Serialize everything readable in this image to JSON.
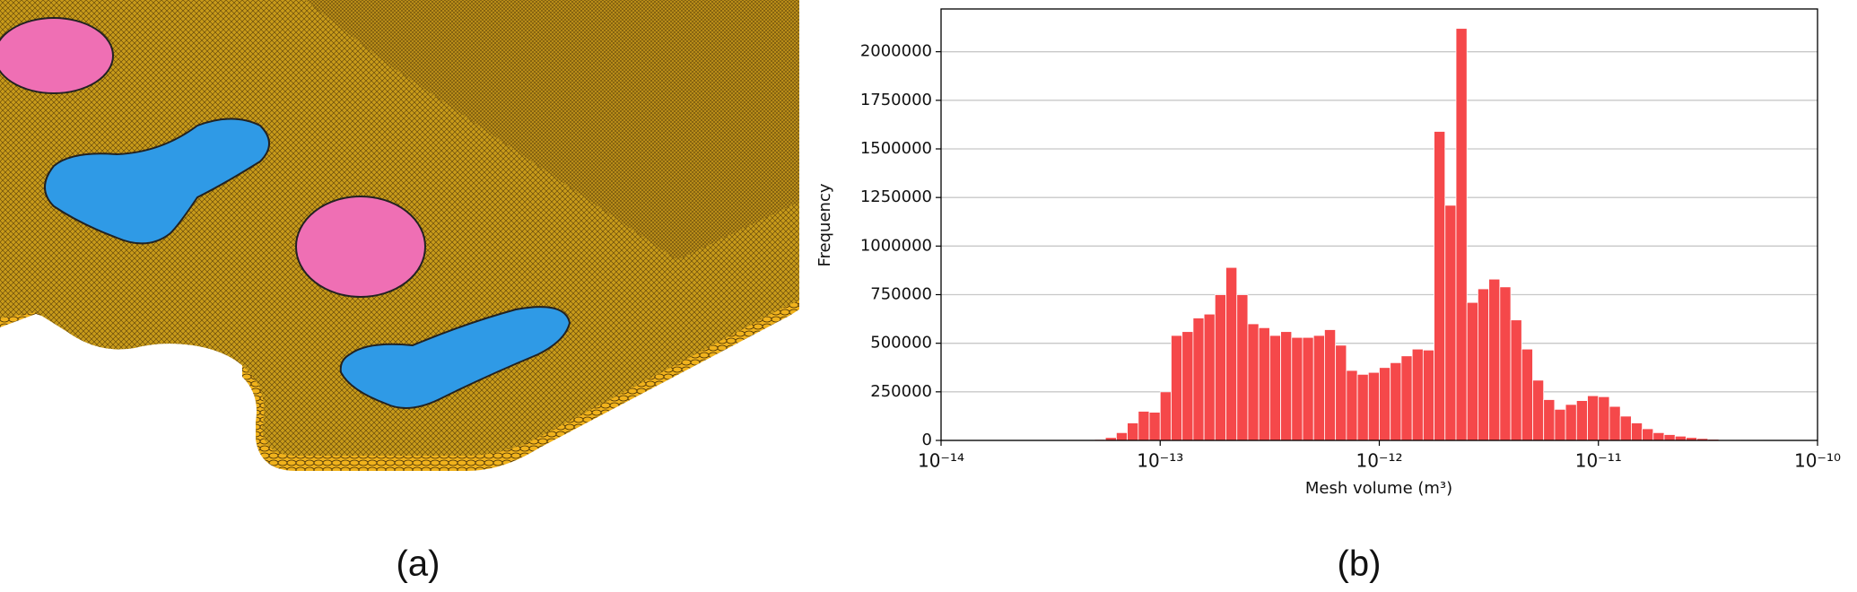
{
  "chart_data": {
    "type": "histogram",
    "xlabel": "Mesh volume (m³)",
    "ylabel": "Frequency",
    "color": "#f5484a",
    "xscale": "log",
    "grid": true,
    "bins": [
      1e-14,
      1.122e-14,
      1.259e-14,
      1.413e-14,
      1.585e-14,
      1.778e-14,
      1.995e-14,
      2.239e-14,
      2.512e-14,
      2.818e-14,
      3.162e-14,
      3.548e-14,
      3.981e-14,
      4.467e-14,
      5.012e-14,
      5.623e-14,
      6.31e-14,
      7.079e-14,
      7.943e-14,
      8.913e-14,
      1e-13,
      1.122e-13,
      1.259e-13,
      1.413e-13,
      1.585e-13,
      1.778e-13,
      1.995e-13,
      2.239e-13,
      2.512e-13,
      2.818e-13,
      3.162e-13,
      3.548e-13,
      3.981e-13,
      4.467e-13,
      5.012e-13,
      5.623e-13,
      6.31e-13,
      7.079e-13,
      7.943e-13,
      8.913e-13,
      1e-12,
      1.122e-12,
      1.259e-12,
      1.413e-12,
      1.585e-12,
      1.778e-12,
      1.995e-12,
      2.239e-12,
      2.512e-12,
      2.818e-12,
      3.162e-12,
      3.548e-12,
      3.981e-12,
      4.467e-12,
      5.012e-12,
      5.623e-12,
      6.31e-12,
      7.079e-12,
      7.943e-12,
      8.913e-12,
      1e-11,
      1.122e-11,
      1.259e-11,
      1.413e-11,
      1.585e-11,
      1.778e-11,
      1.995e-11,
      2.239e-11,
      2.512e-11,
      2.818e-11,
      3.162e-11,
      3.548e-11,
      3.981e-11,
      4.467e-11,
      5.012e-11,
      5.623e-11,
      6.31e-11,
      7.079e-11,
      7.943e-11,
      8.913e-11,
      1e-10
    ],
    "values": [
      0,
      0,
      0,
      0,
      0,
      0,
      0,
      0,
      0,
      0,
      0,
      0,
      0,
      0,
      5000,
      15000,
      40000,
      90000,
      150000,
      145000,
      250000,
      540000,
      560000,
      630000,
      650000,
      750000,
      890000,
      750000,
      600000,
      580000,
      540000,
      560000,
      530000,
      530000,
      540000,
      570000,
      490000,
      360000,
      340000,
      350000,
      375000,
      400000,
      435000,
      470000,
      465000,
      1590000,
      1210000,
      2120000,
      710000,
      780000,
      830000,
      790000,
      620000,
      470000,
      310000,
      210000,
      160000,
      185000,
      205000,
      230000,
      225000,
      175000,
      125000,
      90000,
      60000,
      40000,
      30000,
      22000,
      15000,
      10000,
      6000,
      4000,
      2500,
      1500,
      1000,
      600,
      400,
      200,
      100,
      0
    ],
    "xlim": [
      1e-14,
      1e-10
    ],
    "xticks": [
      {
        "value": 1e-14,
        "label": "10⁻¹⁴"
      },
      {
        "value": 1e-13,
        "label": "10⁻¹³"
      },
      {
        "value": 1e-12,
        "label": "10⁻¹²"
      },
      {
        "value": 1e-11,
        "label": "10⁻¹¹"
      },
      {
        "value": 1e-10,
        "label": "10⁻¹⁰"
      }
    ],
    "ylim": [
      0,
      2220000
    ],
    "yticks": [
      0,
      250000,
      500000,
      750000,
      1000000,
      1250000,
      1500000,
      1750000,
      2000000
    ]
  },
  "panel_labels": {
    "a": "(a)",
    "b": "(b)"
  }
}
